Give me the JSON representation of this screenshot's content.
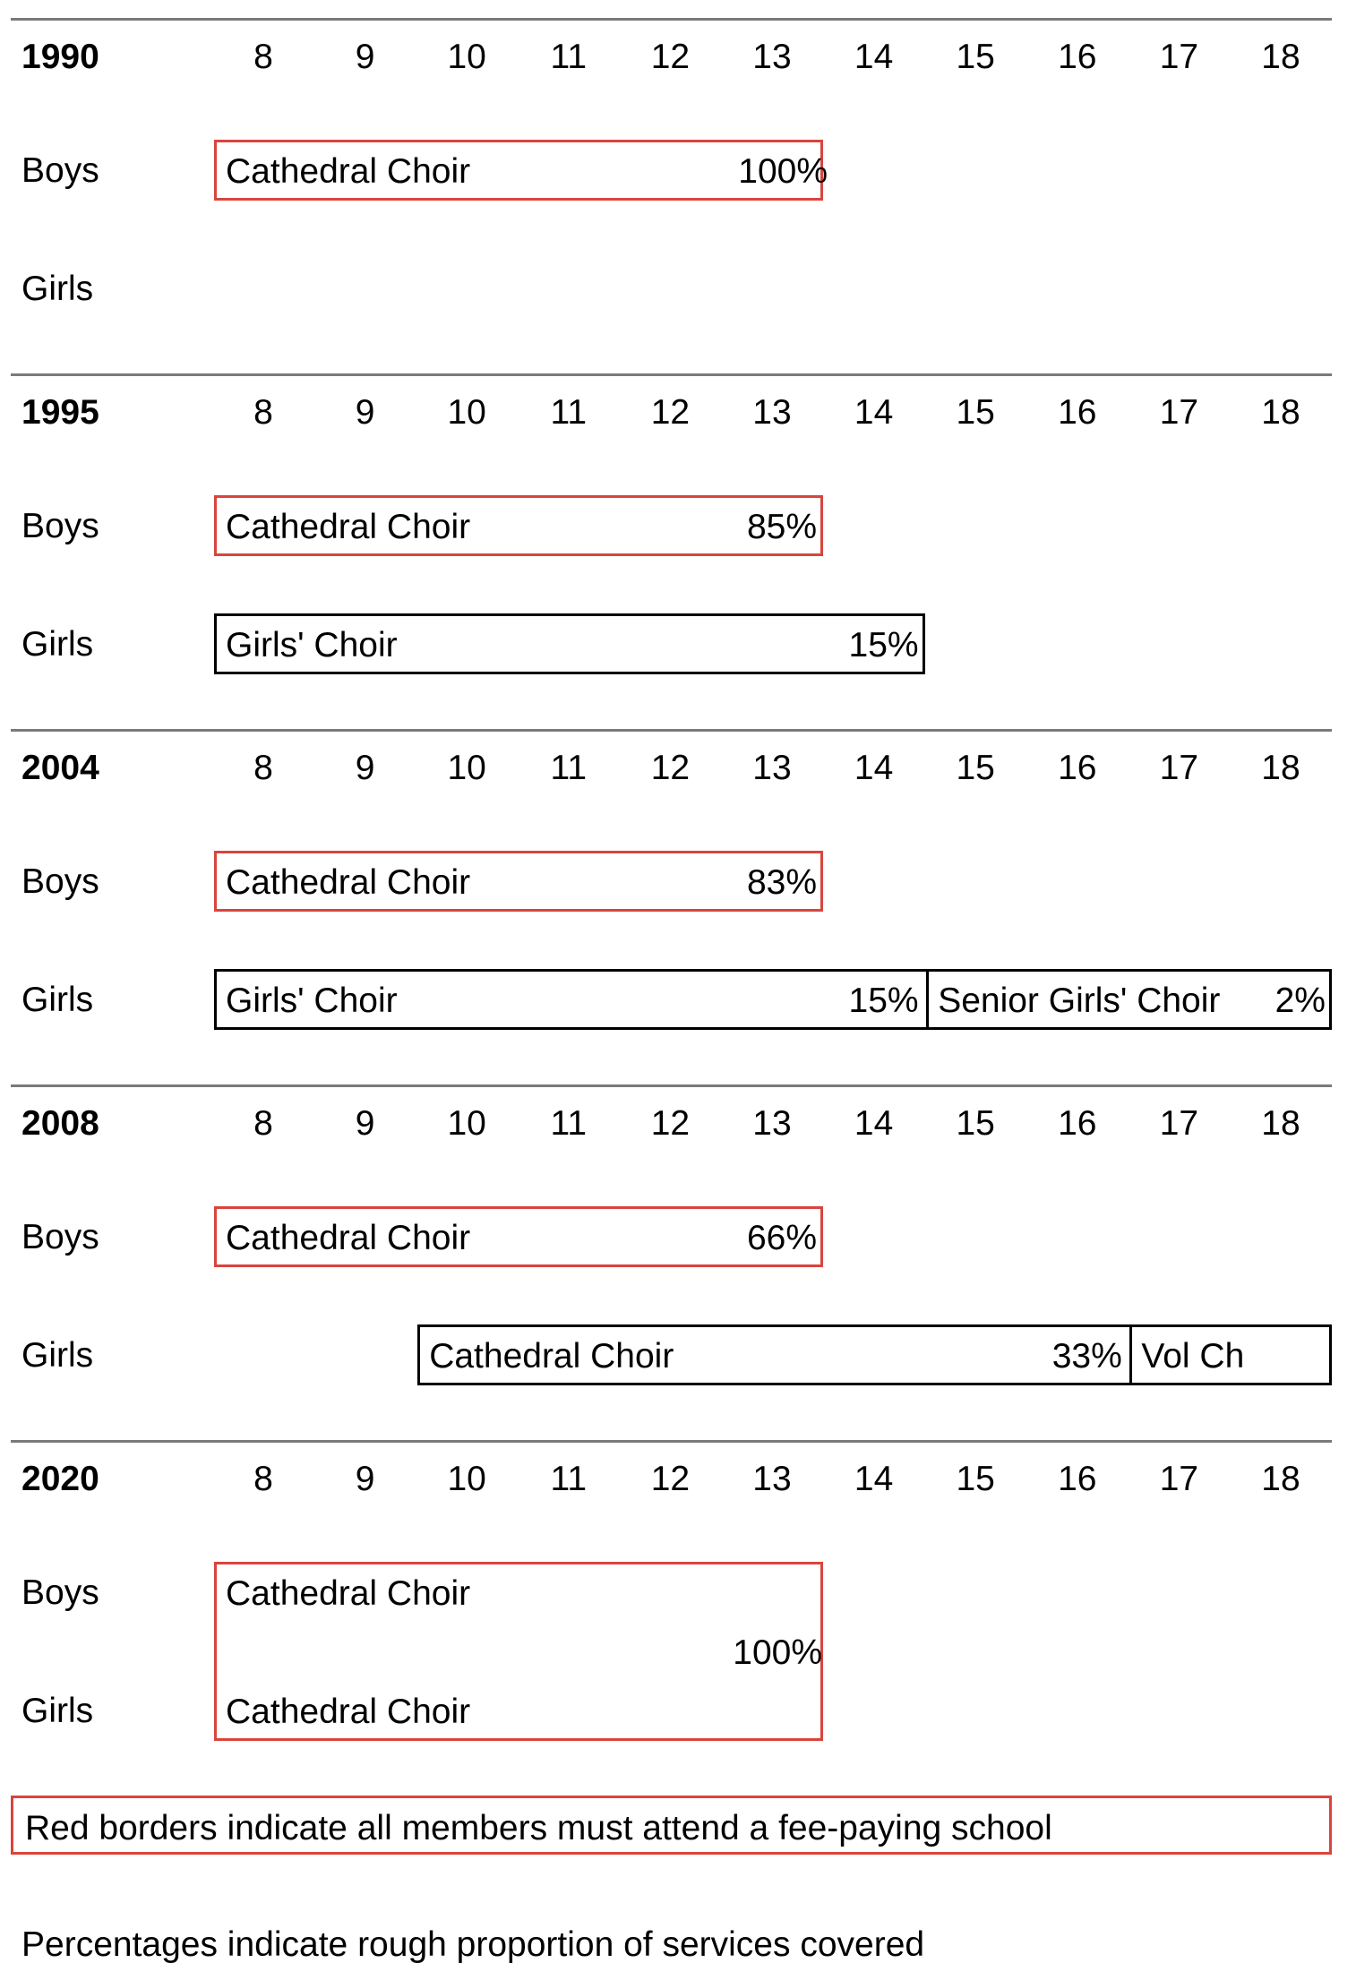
{
  "ages": [
    "8",
    "9",
    "10",
    "11",
    "12",
    "13",
    "14",
    "15",
    "16",
    "17",
    "18"
  ],
  "row_labels": {
    "boys": "Boys",
    "girls": "Girls"
  },
  "colors": {
    "fee_paying_border": "#d9453d",
    "standard_border": "#000000",
    "rule": "#7a7a7a"
  },
  "sections": [
    {
      "year": "1990",
      "boys": [
        {
          "name": "Cathedral Choir",
          "pct": "100%",
          "start_age": 8,
          "end_age": 13,
          "fee_paying": true
        }
      ],
      "girls": []
    },
    {
      "year": "1995",
      "boys": [
        {
          "name": "Cathedral Choir",
          "pct": "85%",
          "start_age": 8,
          "end_age": 13,
          "fee_paying": true
        }
      ],
      "girls": [
        {
          "name": "Girls' Choir",
          "pct": "15%",
          "start_age": 8,
          "end_age": 14,
          "fee_paying": false
        }
      ]
    },
    {
      "year": "2004",
      "boys": [
        {
          "name": "Cathedral Choir",
          "pct": "83%",
          "start_age": 8,
          "end_age": 13,
          "fee_paying": true
        }
      ],
      "girls": [
        {
          "name": "Girls' Choir",
          "pct": "15%",
          "start_age": 8,
          "end_age": 14,
          "fee_paying": false
        },
        {
          "name": "Senior Girls' Choir",
          "pct": "2%",
          "start_age": 15,
          "end_age": 18,
          "fee_paying": false
        }
      ]
    },
    {
      "year": "2008",
      "boys": [
        {
          "name": "Cathedral Choir",
          "pct": "66%",
          "start_age": 8,
          "end_age": 13,
          "fee_paying": true
        }
      ],
      "girls": [
        {
          "name": "Cathedral Choir",
          "pct": "33%",
          "start_age": 10,
          "end_age": 16,
          "fee_paying": false
        },
        {
          "name": "Vol Ch",
          "pct": "",
          "start_age": 17,
          "end_age": 18,
          "fee_paying": false
        }
      ]
    },
    {
      "year": "2020",
      "combined": {
        "boys_name": "Cathedral Choir",
        "girls_name": "Cathedral Choir",
        "pct": "100%",
        "start_age": 8,
        "end_age": 13,
        "fee_paying": true
      }
    }
  ],
  "legend": {
    "red_border_note": "Red borders indicate all members must attend a fee-paying school",
    "percentage_note": "Percentages indicate rough proportion of services covered"
  }
}
